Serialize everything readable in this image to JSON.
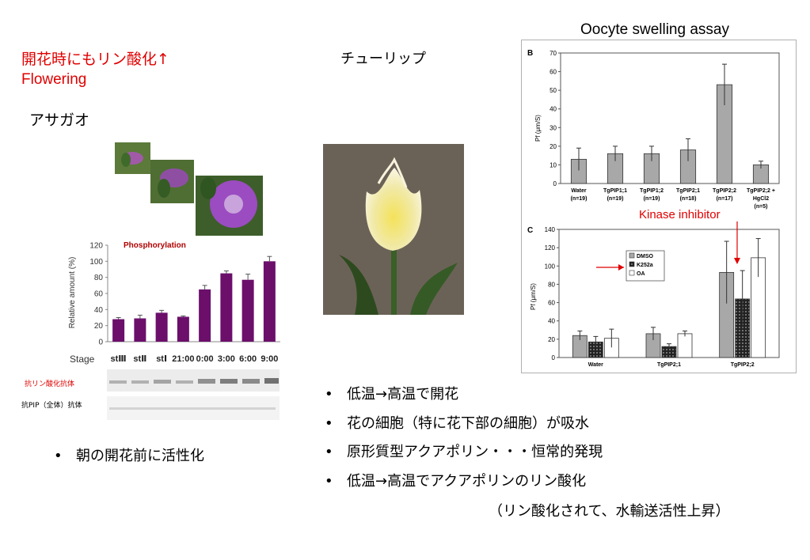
{
  "left": {
    "heading_jp": "開花時にもリン酸化↑",
    "heading_en": "Flowering",
    "plant_name": "アサガオ",
    "bullet": "朝の開花前に活性化",
    "blot_labels": [
      "抗リン酸化抗体",
      "抗PIP（全体）抗体"
    ]
  },
  "middle": {
    "plant_name": "チューリップ"
  },
  "right": {
    "title": "Oocyte swelling assay",
    "annotation": "Kinase inhibitor"
  },
  "bullets": [
    "低温→高温で開花",
    "花の細胞（特に花下部の細胞）が吸水",
    "原形質型アクアポリン・・・恒常的発現",
    "低温→高温でアクアポリンのリン酸化"
  ],
  "footnote": "（リン酸化されて、水輸送活性上昇）",
  "colors": {
    "accent_red": "#e00000",
    "bar_purple": "#6b0f6b"
  },
  "chart_data": [
    {
      "type": "bar",
      "title": "Phosphorylation",
      "ylabel": "Relative amount (%)",
      "xlabel": "Stage",
      "ylim": [
        0,
        120
      ],
      "yticks": [
        0,
        20,
        40,
        60,
        80,
        100,
        120
      ],
      "categories": [
        "stⅢ",
        "stⅡ",
        "stⅠ",
        "21:00",
        "0:00",
        "3:00",
        "6:00",
        "9:00"
      ],
      "values": [
        28,
        29,
        36,
        31,
        65,
        85,
        77,
        100
      ],
      "errors": [
        2,
        4,
        3,
        1,
        5,
        3,
        7,
        6
      ]
    },
    {
      "type": "bar",
      "panel": "B",
      "ylabel": "Pf (μm/S)",
      "ylim": [
        0,
        70
      ],
      "yticks": [
        0,
        10,
        20,
        30,
        40,
        50,
        60,
        70
      ],
      "categories": [
        "Water (n=19)",
        "TgPIP1;1 (n=19)",
        "TgPIP1;2 (n=19)",
        "TgPIP2;1 (n=18)",
        "TgPIP2;2 (n=17)",
        "TgPIP2;2 + HgCl2 (n=5)"
      ],
      "tick_lines": [
        [
          "Water",
          "(n=19)"
        ],
        [
          "TgPIP1;1",
          "(n=19)"
        ],
        [
          "TgPIP1;2",
          "(n=19)"
        ],
        [
          "TgPIP2;1",
          "(n=18)"
        ],
        [
          "TgPIP2;2",
          "(n=17)"
        ],
        [
          "TgPIP2;2 +",
          "HgCl2",
          "(n=5)"
        ]
      ],
      "values": [
        13,
        16,
        16,
        18,
        53,
        10
      ],
      "errors": [
        6,
        4,
        4,
        6,
        11,
        2
      ]
    },
    {
      "type": "bar",
      "panel": "C",
      "ylabel": "Pf (μm/S)",
      "ylim": [
        0,
        140
      ],
      "yticks": [
        0,
        20,
        40,
        60,
        80,
        100,
        120,
        140
      ],
      "categories": [
        "Water",
        "TgPIP2;1",
        "TgPIP2;2"
      ],
      "series": [
        {
          "name": "DMSO",
          "values": [
            24,
            26,
            93
          ],
          "errors": [
            5,
            7,
            34
          ]
        },
        {
          "name": "K252a",
          "values": [
            17,
            12,
            64
          ],
          "errors": [
            6,
            3,
            31
          ]
        },
        {
          "name": "OA",
          "values": [
            21,
            26,
            109
          ],
          "errors": [
            10,
            3,
            21
          ]
        }
      ]
    }
  ]
}
